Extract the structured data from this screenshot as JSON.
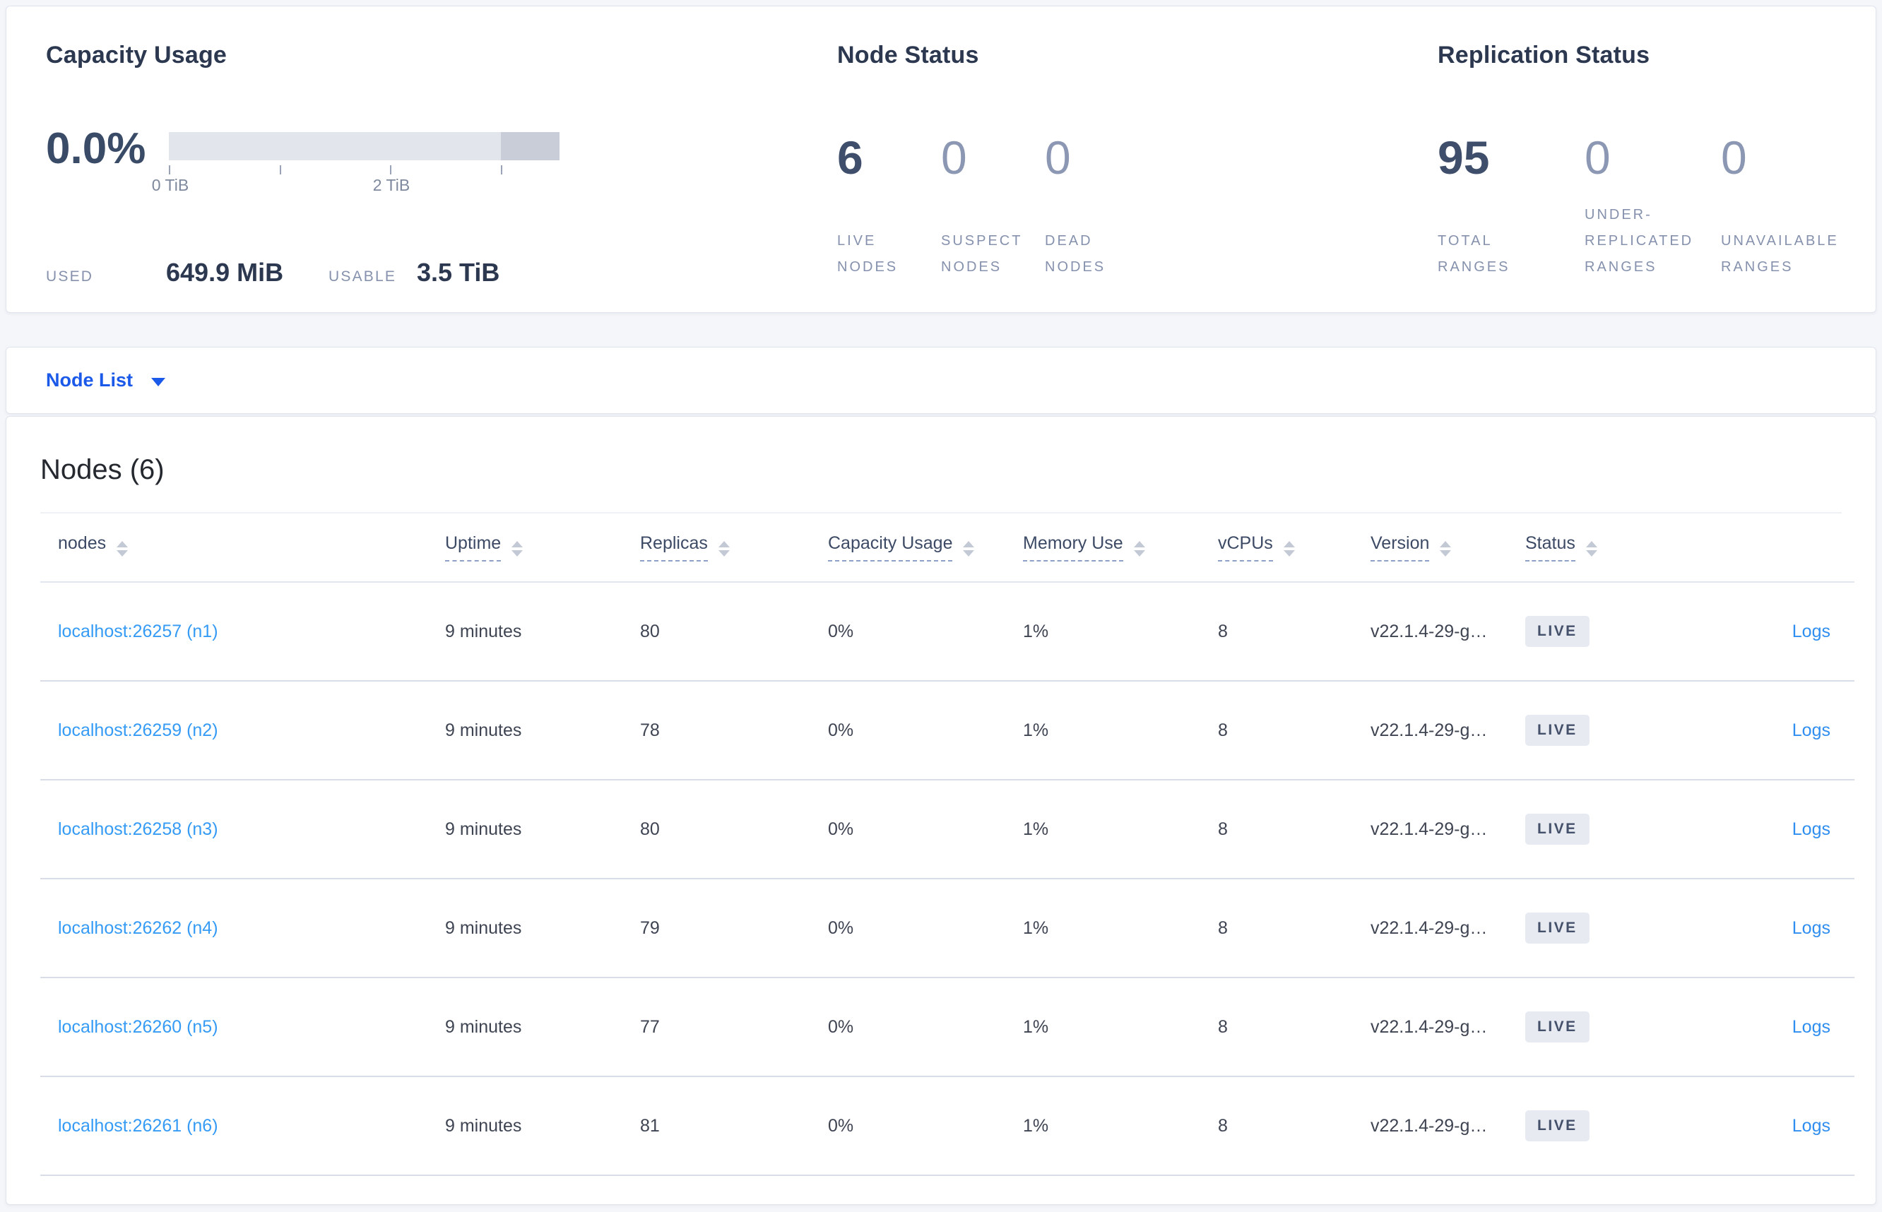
{
  "summary": {
    "capacity": {
      "title": "Capacity Usage",
      "percent": "0.0%",
      "axis_ticks_tib": [
        0,
        1,
        2,
        3
      ],
      "tick_labels": [
        {
          "text": "0 TiB",
          "at_tib": 0
        },
        {
          "text": "2 TiB",
          "at_tib": 2
        }
      ],
      "used_label": "USED",
      "used_value": "649.9 MiB",
      "usable_label": "USABLE",
      "usable_value": "3.5 TiB"
    },
    "node_status": {
      "title": "Node Status",
      "stats": [
        {
          "value": "6",
          "label": "LIVE NODES",
          "emphasis": true
        },
        {
          "value": "0",
          "label": "SUSPECT NODES",
          "emphasis": false
        },
        {
          "value": "0",
          "label": "DEAD NODES",
          "emphasis": false
        }
      ]
    },
    "replication_status": {
      "title": "Replication Status",
      "stats": [
        {
          "value": "95",
          "label": "TOTAL RANGES",
          "emphasis": true
        },
        {
          "value": "0",
          "label": "UNDER-REPLICATED RANGES",
          "emphasis": false
        },
        {
          "value": "0",
          "label": "UNAVAILABLE RANGES",
          "emphasis": false
        }
      ]
    }
  },
  "view_selector": {
    "label": "Node List"
  },
  "table": {
    "title": "Nodes (6)",
    "logs_label": "Logs",
    "columns": [
      {
        "key": "node",
        "label": "nodes",
        "underline": false
      },
      {
        "key": "uptime",
        "label": "Uptime",
        "underline": true
      },
      {
        "key": "replicas",
        "label": "Replicas",
        "underline": true
      },
      {
        "key": "capacity",
        "label": "Capacity Usage",
        "underline": true
      },
      {
        "key": "memory",
        "label": "Memory Use",
        "underline": true
      },
      {
        "key": "vcpus",
        "label": "vCPUs",
        "underline": true
      },
      {
        "key": "version",
        "label": "Version",
        "underline": true
      },
      {
        "key": "status",
        "label": "Status",
        "underline": true
      }
    ],
    "rows": [
      {
        "node": "localhost:26257 (n1)",
        "uptime": "9 minutes",
        "replicas": "80",
        "capacity": "0%",
        "memory": "1%",
        "vcpus": "8",
        "version": "v22.1.4-29-g…",
        "status": "LIVE"
      },
      {
        "node": "localhost:26259 (n2)",
        "uptime": "9 minutes",
        "replicas": "78",
        "capacity": "0%",
        "memory": "1%",
        "vcpus": "8",
        "version": "v22.1.4-29-g…",
        "status": "LIVE"
      },
      {
        "node": "localhost:26258 (n3)",
        "uptime": "9 minutes",
        "replicas": "80",
        "capacity": "0%",
        "memory": "1%",
        "vcpus": "8",
        "version": "v22.1.4-29-g…",
        "status": "LIVE"
      },
      {
        "node": "localhost:26262 (n4)",
        "uptime": "9 minutes",
        "replicas": "79",
        "capacity": "0%",
        "memory": "1%",
        "vcpus": "8",
        "version": "v22.1.4-29-g…",
        "status": "LIVE"
      },
      {
        "node": "localhost:26260 (n5)",
        "uptime": "9 minutes",
        "replicas": "77",
        "capacity": "0%",
        "memory": "1%",
        "vcpus": "8",
        "version": "v22.1.4-29-g…",
        "status": "LIVE"
      },
      {
        "node": "localhost:26261 (n6)",
        "uptime": "9 minutes",
        "replicas": "81",
        "capacity": "0%",
        "memory": "1%",
        "vcpus": "8",
        "version": "v22.1.4-29-g…",
        "status": "LIVE"
      }
    ]
  },
  "colors": {
    "page_background": "#f4f6fa",
    "accent_blue": "#1b59e9",
    "link_blue": "#359bf5",
    "logs_blue": "#2f8ef0",
    "bar_track": "#e2e5eb",
    "bar_dark_segment": "#c9cdd8",
    "badge_background": "#e7eaf1",
    "badge_text": "#45516b",
    "stat_number_dark": "#3e4e6b",
    "stat_number_muted": "#8b97b3"
  }
}
